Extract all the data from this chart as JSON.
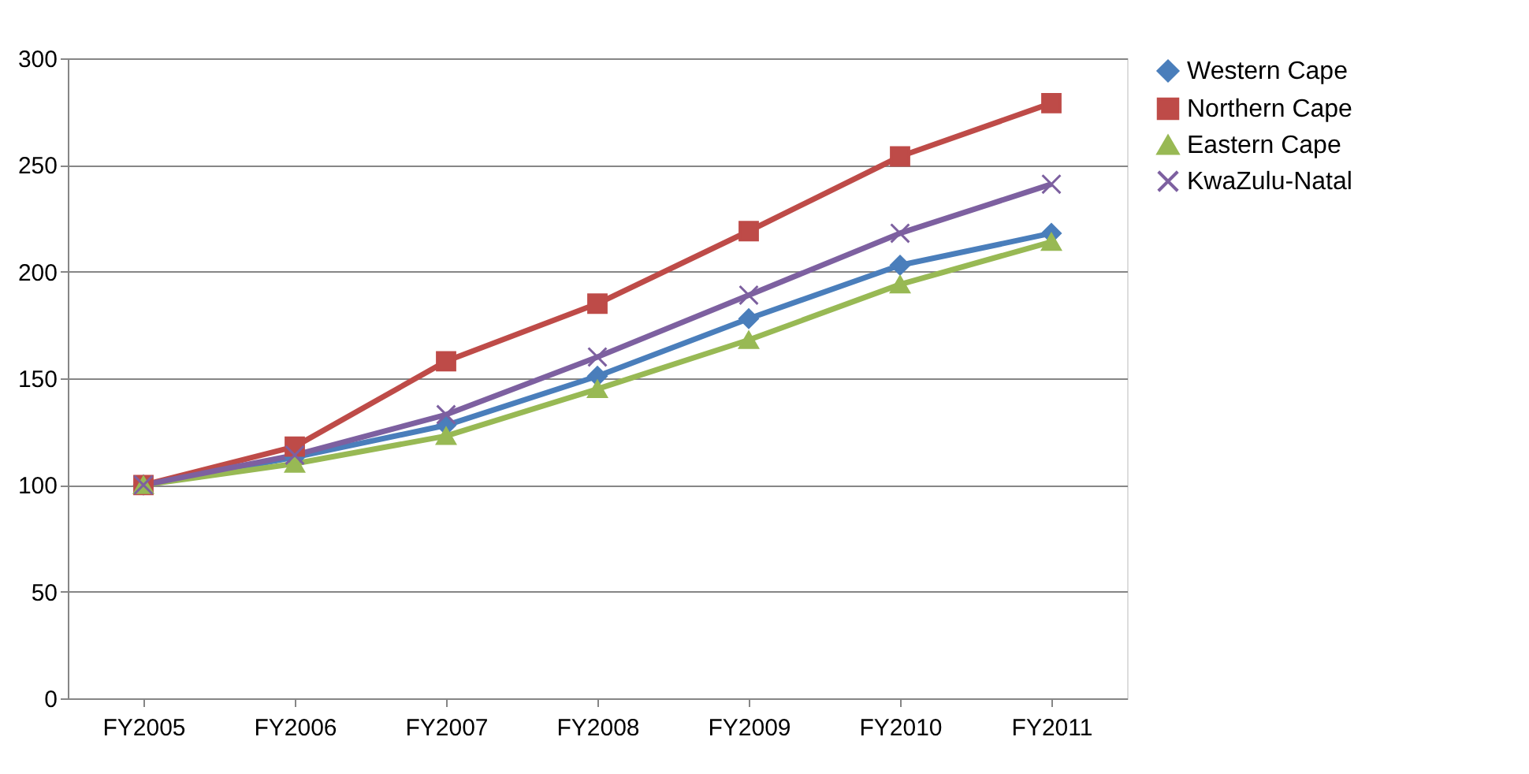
{
  "chart_data": {
    "type": "line",
    "categories": [
      "FY2005",
      "FY2006",
      "FY2007",
      "FY2008",
      "FY2009",
      "FY2010",
      "FY2011"
    ],
    "series": [
      {
        "name": "Western Cape",
        "color": "#4a7ebb",
        "marker": "diamond",
        "values": [
          100,
          113,
          128,
          151,
          178,
          203,
          218
        ]
      },
      {
        "name": "Northern Cape",
        "color": "#be4b48",
        "marker": "square",
        "values": [
          100,
          118,
          158,
          185,
          219,
          254,
          279
        ]
      },
      {
        "name": "Eastern Cape",
        "color": "#98b954",
        "marker": "triangle",
        "values": [
          100,
          110,
          123,
          145,
          168,
          194,
          214
        ]
      },
      {
        "name": "KwaZulu-Natal",
        "color": "#7d60a0",
        "marker": "cross",
        "values": [
          100,
          114,
          133,
          160,
          189,
          218,
          241
        ]
      }
    ],
    "ylim": [
      0,
      300
    ],
    "yticks": [
      0,
      50,
      100,
      150,
      200,
      250,
      300
    ],
    "grid": "y",
    "legend": "right"
  }
}
